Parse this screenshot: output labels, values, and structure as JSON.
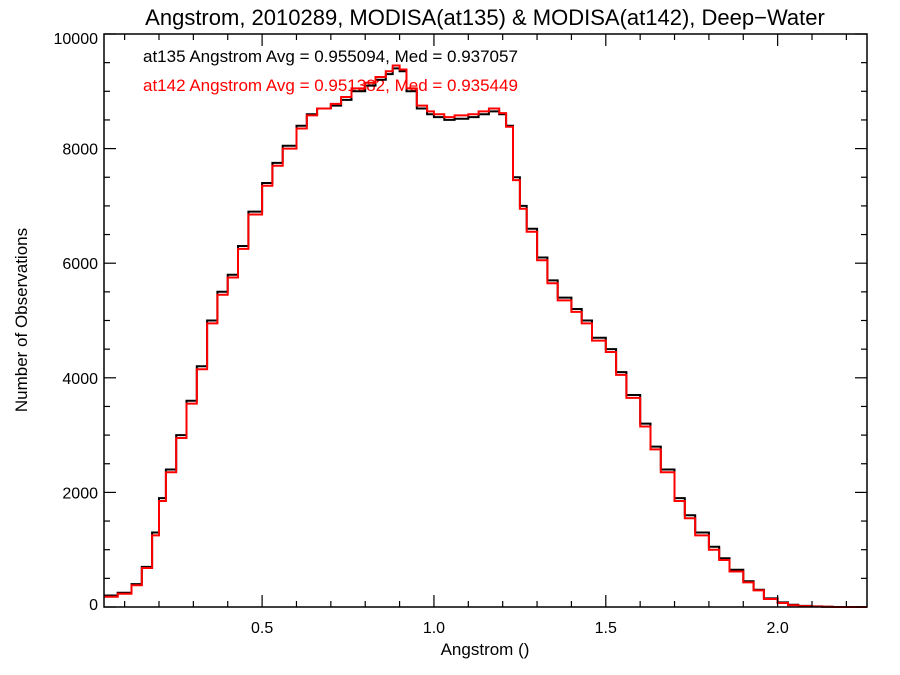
{
  "chart_data": {
    "type": "line",
    "style": "histogram-step",
    "title": "Angstrom, 2010289, MODISA(at135) & MODISA(at142), Deep−Water",
    "xlabel": "Angstrom ()",
    "ylabel": "Number of Observations",
    "xlim": [
      0.04,
      2.26
    ],
    "ylim": [
      0,
      10000
    ],
    "x_ticks": [
      {
        "value": 0.5,
        "label": "0.5"
      },
      {
        "value": 1.0,
        "label": "1.0"
      },
      {
        "value": 1.5,
        "label": "1.5"
      },
      {
        "value": 2.0,
        "label": "2.0"
      }
    ],
    "y_ticks": [
      {
        "value": 0,
        "label": "0"
      },
      {
        "value": 2000,
        "label": "2000"
      },
      {
        "value": 4000,
        "label": "4000"
      },
      {
        "value": 6000,
        "label": "6000"
      },
      {
        "value": 8000,
        "label": "8000"
      },
      {
        "value": 10000,
        "label": "10000"
      }
    ],
    "grid": false,
    "annotations": [
      {
        "text": "at135 Angstrom Avg = 0.955094, Med = 0.937057",
        "color": "#000000"
      },
      {
        "text": "at142 Angstrom Avg = 0.951382, Med = 0.935449",
        "color": "#ff0000"
      }
    ],
    "series": [
      {
        "color": "#000000",
        "x": [
          0.04,
          0.08,
          0.12,
          0.15,
          0.18,
          0.2,
          0.22,
          0.25,
          0.28,
          0.31,
          0.34,
          0.37,
          0.4,
          0.43,
          0.46,
          0.5,
          0.53,
          0.56,
          0.6,
          0.63,
          0.66,
          0.7,
          0.73,
          0.76,
          0.8,
          0.83,
          0.86,
          0.88,
          0.9,
          0.92,
          0.95,
          0.98,
          1.0,
          1.03,
          1.06,
          1.1,
          1.13,
          1.16,
          1.19,
          1.21,
          1.23,
          1.25,
          1.27,
          1.3,
          1.33,
          1.36,
          1.4,
          1.43,
          1.46,
          1.5,
          1.53,
          1.56,
          1.6,
          1.63,
          1.66,
          1.7,
          1.73,
          1.76,
          1.8,
          1.83,
          1.86,
          1.9,
          1.93,
          1.96,
          2.0,
          2.03,
          2.06,
          2.1,
          2.13,
          2.16,
          2.2,
          2.26
        ],
        "y": [
          200,
          250,
          400,
          700,
          1300,
          1900,
          2400,
          3000,
          3600,
          4200,
          5000,
          5500,
          5800,
          6300,
          6900,
          7400,
          7750,
          8050,
          8400,
          8600,
          8700,
          8750,
          8850,
          9000,
          9100,
          9200,
          9300,
          9400,
          9350,
          9000,
          8700,
          8600,
          8550,
          8500,
          8520,
          8550,
          8600,
          8650,
          8600,
          8400,
          7500,
          7000,
          6600,
          6100,
          5700,
          5400,
          5200,
          5000,
          4700,
          4500,
          4100,
          3700,
          3200,
          2800,
          2400,
          1900,
          1600,
          1300,
          1050,
          850,
          650,
          450,
          300,
          150,
          80,
          40,
          20,
          10,
          5,
          0,
          0,
          0
        ]
      },
      {
        "color": "#ff0000",
        "x": [
          0.04,
          0.08,
          0.12,
          0.15,
          0.18,
          0.2,
          0.22,
          0.25,
          0.28,
          0.31,
          0.34,
          0.37,
          0.4,
          0.43,
          0.46,
          0.5,
          0.53,
          0.56,
          0.6,
          0.63,
          0.66,
          0.7,
          0.73,
          0.76,
          0.8,
          0.83,
          0.86,
          0.88,
          0.9,
          0.92,
          0.95,
          0.98,
          1.0,
          1.03,
          1.06,
          1.1,
          1.13,
          1.16,
          1.19,
          1.21,
          1.23,
          1.25,
          1.27,
          1.3,
          1.33,
          1.36,
          1.4,
          1.43,
          1.46,
          1.5,
          1.53,
          1.56,
          1.6,
          1.63,
          1.66,
          1.7,
          1.73,
          1.76,
          1.8,
          1.83,
          1.86,
          1.9,
          1.93,
          1.96,
          2.0,
          2.03,
          2.06,
          2.1,
          2.13,
          2.16,
          2.2,
          2.26
        ],
        "y": [
          180,
          230,
          380,
          680,
          1250,
          1850,
          2350,
          2950,
          3550,
          4150,
          4950,
          5450,
          5750,
          6250,
          6850,
          7350,
          7700,
          8000,
          8350,
          8580,
          8700,
          8780,
          8900,
          9050,
          9150,
          9250,
          9350,
          9450,
          9380,
          9050,
          8750,
          8650,
          8600,
          8550,
          8580,
          8600,
          8650,
          8700,
          8620,
          8380,
          7450,
          6950,
          6550,
          6050,
          5650,
          5350,
          5150,
          4950,
          4650,
          4450,
          4050,
          3650,
          3150,
          2750,
          2350,
          1850,
          1550,
          1250,
          1000,
          820,
          620,
          430,
          290,
          140,
          70,
          30,
          15,
          8,
          3,
          0,
          0,
          0
        ]
      }
    ]
  }
}
